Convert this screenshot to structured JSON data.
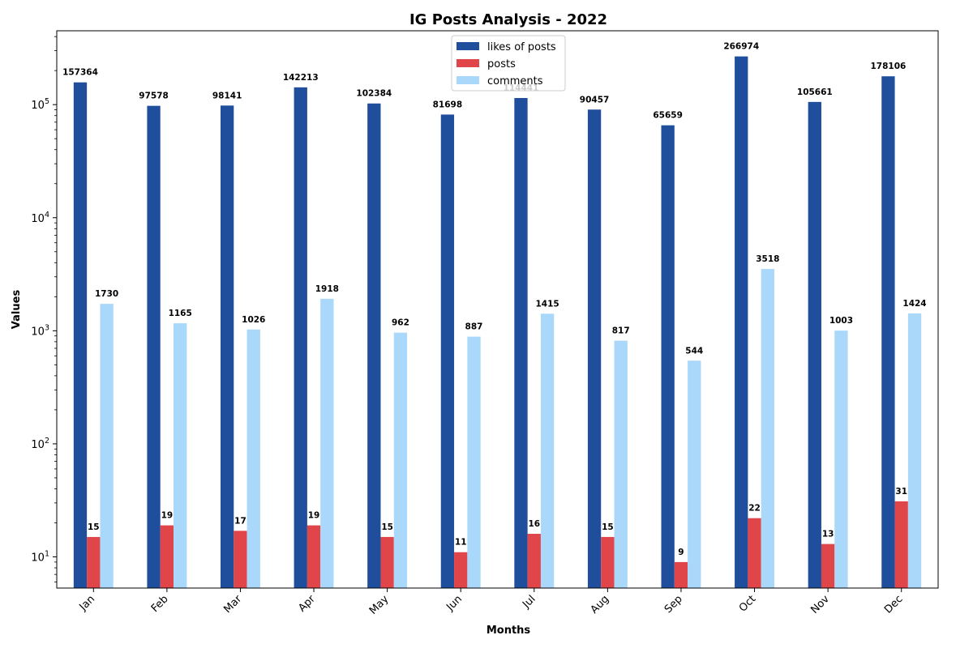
{
  "chart_data": {
    "type": "bar",
    "title": "IG Posts Analysis - 2022",
    "xlabel": "Months",
    "ylabel": "Values",
    "yscale": "log",
    "ylim": [
      5.3,
      450000
    ],
    "y_ticks": [
      {
        "value": 10,
        "base": "10",
        "exp": "1"
      },
      {
        "value": 100,
        "base": "10",
        "exp": "2"
      },
      {
        "value": 1000,
        "base": "10",
        "exp": "3"
      },
      {
        "value": 10000,
        "base": "10",
        "exp": "4"
      },
      {
        "value": 100000,
        "base": "10",
        "exp": "5"
      }
    ],
    "categories": [
      "Jan",
      "Feb",
      "Mar",
      "Apr",
      "May",
      "Jun",
      "Jul",
      "Aug",
      "Sep",
      "Oct",
      "Nov",
      "Dec"
    ],
    "series": [
      {
        "name": "likes of posts",
        "color": "#1f4e9c",
        "values": [
          157364,
          97578,
          98141,
          142213,
          102384,
          81698,
          114441,
          90457,
          65659,
          266974,
          105661,
          178106
        ]
      },
      {
        "name": "posts",
        "color": "#e0454a",
        "values": [
          15,
          19,
          17,
          19,
          15,
          11,
          16,
          15,
          9,
          22,
          13,
          31
        ]
      },
      {
        "name": "comments",
        "color": "#a9d8fa",
        "values": [
          1730,
          1165,
          1026,
          1918,
          962,
          887,
          1415,
          817,
          544,
          3518,
          1003,
          1424
        ]
      }
    ],
    "legend": "top-center",
    "grid": false
  }
}
